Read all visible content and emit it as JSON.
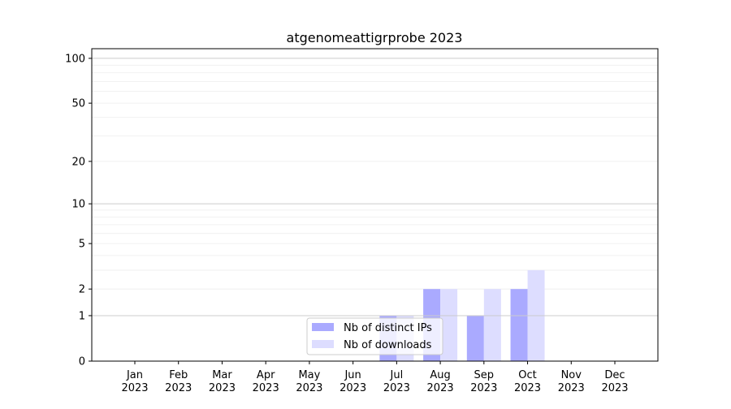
{
  "chart_data": {
    "type": "bar",
    "title": "atgenomeattigrprobe 2023",
    "xlabel": "",
    "ylabel": "",
    "yscale": "log(1+y)",
    "ylim": [
      0,
      116
    ],
    "yticks": [
      0,
      1,
      2,
      5,
      10,
      20,
      50,
      100
    ],
    "grid": true,
    "legend_placement": "lower-center",
    "categories": [
      "Jan\n2023",
      "Feb\n2023",
      "Mar\n2023",
      "Apr\n2023",
      "May\n2023",
      "Jun\n2023",
      "Jul\n2023",
      "Aug\n2023",
      "Sep\n2023",
      "Oct\n2023",
      "Nov\n2023",
      "Dec\n2023"
    ],
    "series": [
      {
        "name": "Nb of distinct IPs",
        "color": "#aaaaff",
        "values": [
          0,
          0,
          0,
          0,
          0,
          0,
          1,
          2,
          1,
          2,
          0,
          0
        ]
      },
      {
        "name": "Nb of downloads",
        "color": "#ddddff",
        "values": [
          0,
          0,
          0,
          0,
          0,
          0,
          1,
          2,
          2,
          3,
          0,
          0
        ]
      }
    ]
  }
}
